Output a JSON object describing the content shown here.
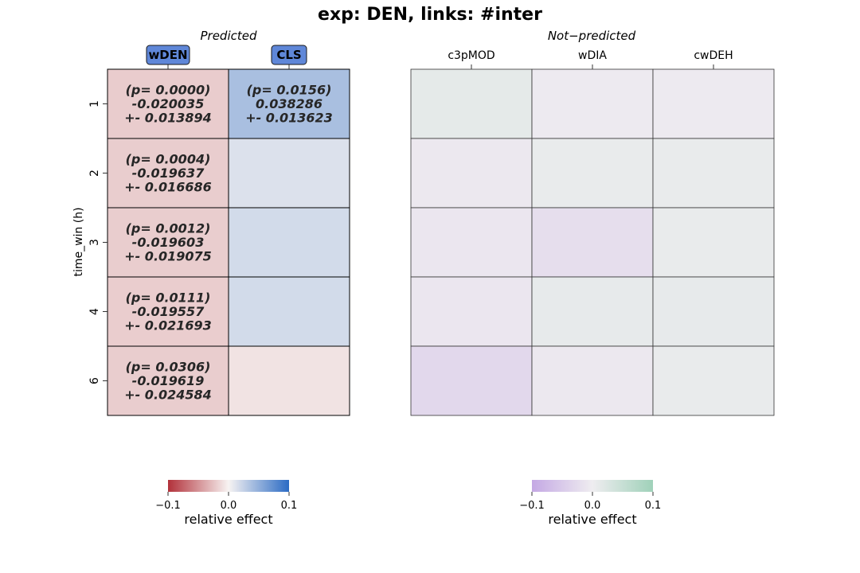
{
  "chart_data": {
    "type": "heatmap",
    "title": "exp: DEN, links: #inter",
    "ylabel": "time_win (h)",
    "row_labels": [
      "1",
      "2",
      "3",
      "4",
      "6"
    ],
    "panels": [
      {
        "id": "predicted",
        "title": "Predicted",
        "columns": [
          "wDEN",
          "CLS"
        ],
        "column_highlight_color": "#5f87d8",
        "colormap": [
          "#b2313a",
          "#f7f3f2",
          "#2b6bc4"
        ],
        "values": [
          [
            -0.020035,
            0.038286
          ],
          [
            -0.019637,
            0.013
          ],
          [
            -0.019603,
            0.018
          ],
          [
            -0.019557,
            0.018
          ],
          [
            -0.019619,
            -0.008
          ]
        ],
        "annotations": [
          [
            "(p= 0.0000)\n-0.020035\n+- 0.013894",
            "(p= 0.0156)\n0.038286\n+- 0.013623"
          ],
          [
            "(p= 0.0004)\n-0.019637\n+- 0.016686",
            ""
          ],
          [
            "(p= 0.0012)\n-0.019603\n+- 0.019075",
            ""
          ],
          [
            "(p= 0.0111)\n-0.019557\n+- 0.021693",
            ""
          ],
          [
            "(p= 0.0306)\n-0.019619\n+- 0.024584",
            ""
          ]
        ],
        "colorbar": {
          "label": "relative effect",
          "vmin": -0.1,
          "vmax": 0.1,
          "ticks": [
            "−0.1",
            "0.0",
            "0.1"
          ]
        }
      },
      {
        "id": "not_predicted",
        "title": "Not−predicted",
        "columns": [
          "c3pMOD",
          "wDIA",
          "cwDEH"
        ],
        "colormap": [
          "#c4a8e4",
          "#efedf0",
          "#9fd1b9"
        ],
        "values": [
          [
            0.012,
            -0.004,
            -0.004
          ],
          [
            -0.007,
            0.008,
            0.008
          ],
          [
            -0.01,
            -0.022,
            0.008
          ],
          [
            -0.01,
            0.01,
            0.01
          ],
          [
            -0.03,
            -0.007,
            0.008
          ]
        ],
        "colorbar": {
          "label": "relative effect",
          "vmin": -0.1,
          "vmax": 0.1,
          "ticks": [
            "−0.1",
            "0.0",
            "0.1"
          ]
        }
      }
    ]
  }
}
